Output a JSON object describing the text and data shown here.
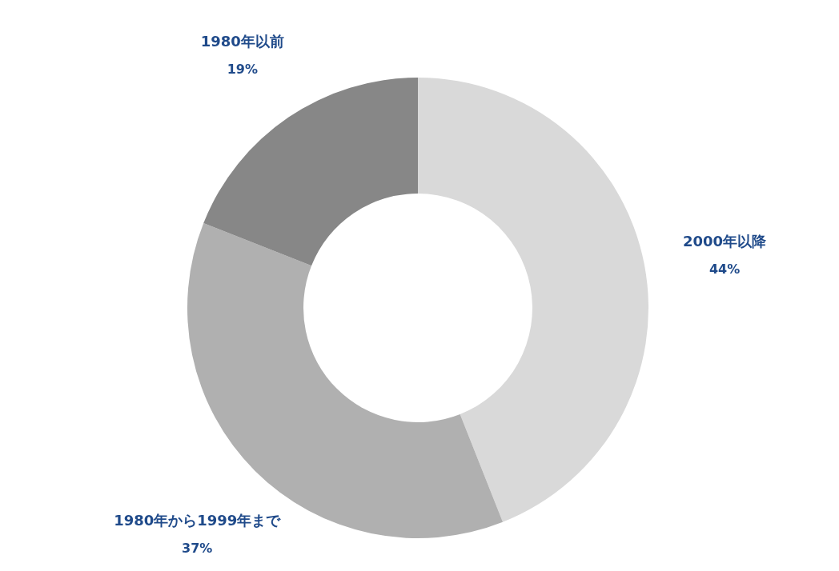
{
  "chart_data": {
    "type": "donut",
    "categories": [
      "2000年以降",
      "1980年から1999年まで",
      "1980年以前"
    ],
    "values": [
      44,
      37,
      19
    ],
    "colors": [
      "#d9d9d9",
      "#b0b0b0",
      "#878787"
    ],
    "value_labels": [
      "44%",
      "37%",
      "19%"
    ],
    "legend": false
  }
}
